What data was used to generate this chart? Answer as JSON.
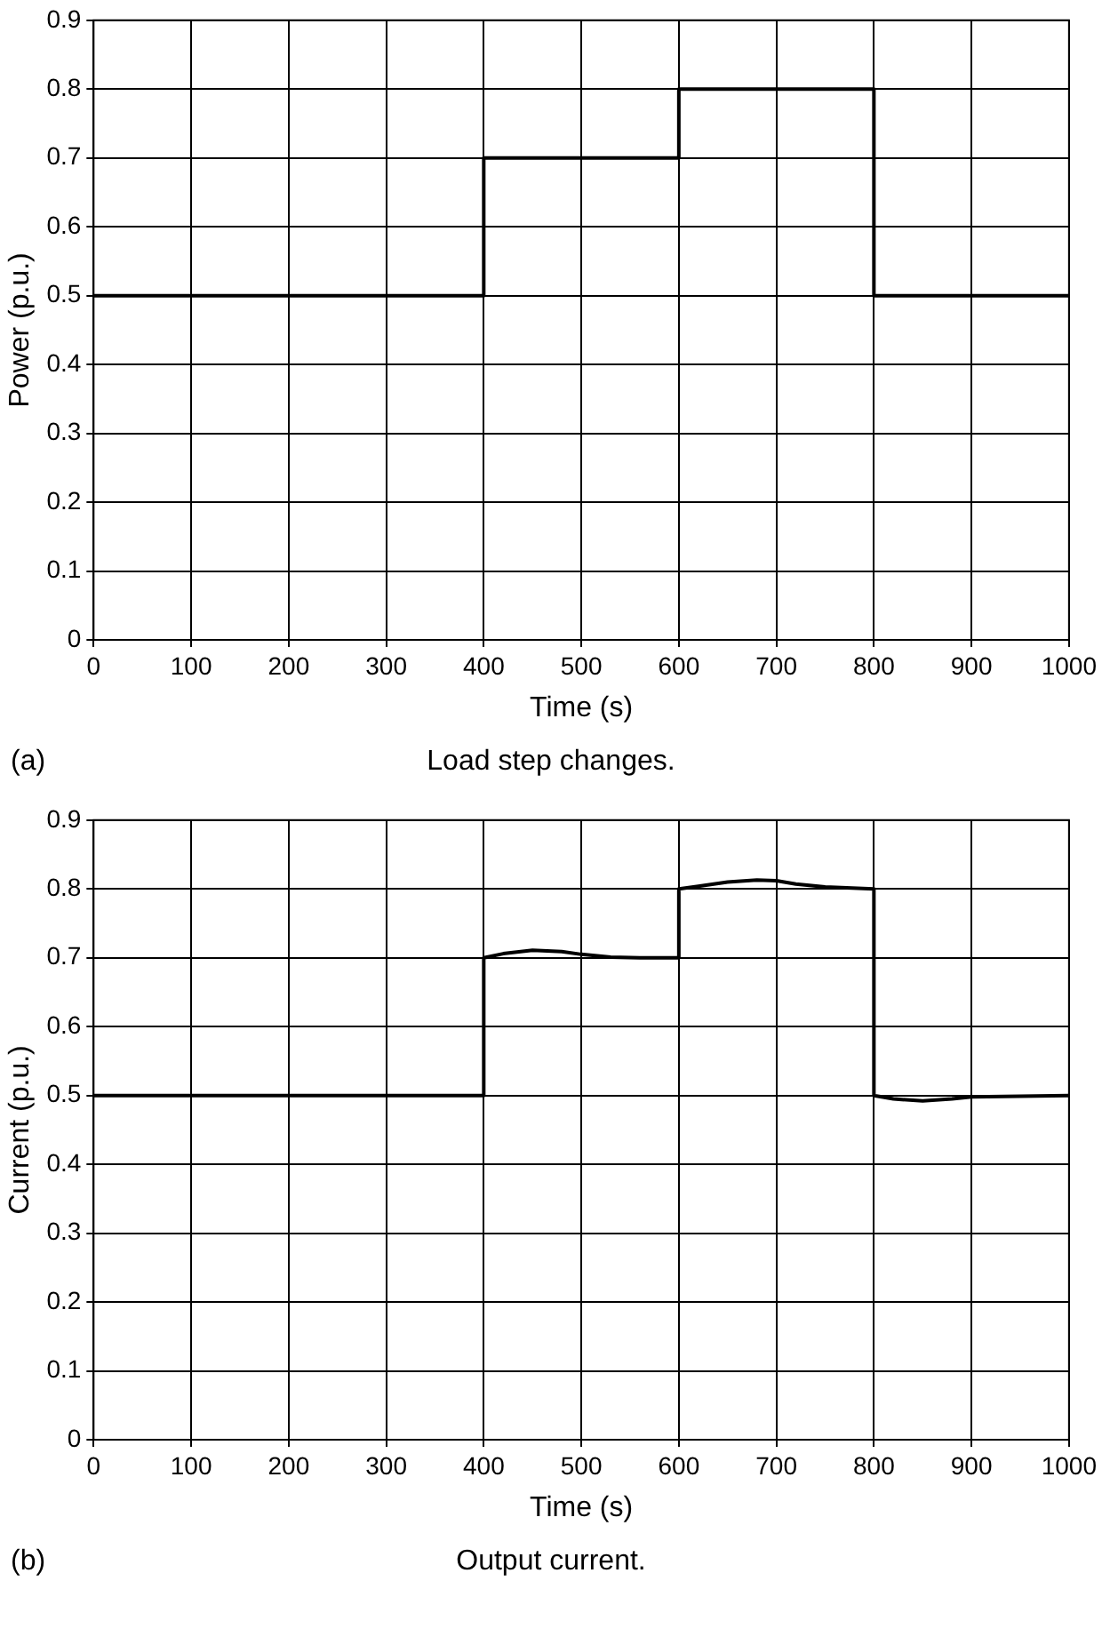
{
  "chart_data": [
    {
      "type": "line",
      "xlabel": "Time (s)",
      "ylabel": "Power (p.u.)",
      "annotations": [
        "(a)",
        "Load step changes."
      ],
      "x": [
        0,
        400,
        400,
        600,
        600,
        800,
        800,
        1000
      ],
      "series": [
        {
          "color": "#000000",
          "values": [
            0.5,
            0.5,
            0.7,
            0.7,
            0.8,
            0.8,
            0.5,
            0.5
          ]
        }
      ],
      "xlim": [
        0,
        1000
      ],
      "xticks": [
        0,
        100,
        200,
        300,
        400,
        500,
        600,
        700,
        800,
        900,
        1000
      ],
      "ylim": [
        0,
        0.9
      ],
      "yticks": [
        0,
        0.1,
        0.2,
        0.3,
        0.4,
        0.5,
        0.6,
        0.7,
        0.8,
        0.9
      ],
      "grid": true,
      "marker": "none",
      "line_style": "solid"
    },
    {
      "type": "line",
      "xlabel": "Time (s)",
      "ylabel": "Current (p.u.)",
      "annotations": [
        "(b)",
        "Output current."
      ],
      "x": [
        0,
        400,
        400,
        420,
        450,
        480,
        500,
        530,
        560,
        600,
        600,
        620,
        650,
        680,
        700,
        720,
        750,
        800,
        800,
        820,
        850,
        880,
        900,
        1000
      ],
      "series": [
        {
          "color": "#000000",
          "values": [
            0.5,
            0.5,
            0.7,
            0.706,
            0.711,
            0.709,
            0.705,
            0.701,
            0.7,
            0.7,
            0.8,
            0.804,
            0.81,
            0.813,
            0.812,
            0.807,
            0.803,
            0.8,
            0.5,
            0.495,
            0.492,
            0.495,
            0.498,
            0.5
          ]
        }
      ],
      "xlim": [
        0,
        1000
      ],
      "xticks": [
        0,
        100,
        200,
        300,
        400,
        500,
        600,
        700,
        800,
        900,
        1000
      ],
      "ylim": [
        0,
        0.9
      ],
      "yticks": [
        0,
        0.1,
        0.2,
        0.3,
        0.4,
        0.5,
        0.6,
        0.7,
        0.8,
        0.9
      ],
      "grid": true,
      "marker": "none",
      "line_style": "solid"
    }
  ]
}
